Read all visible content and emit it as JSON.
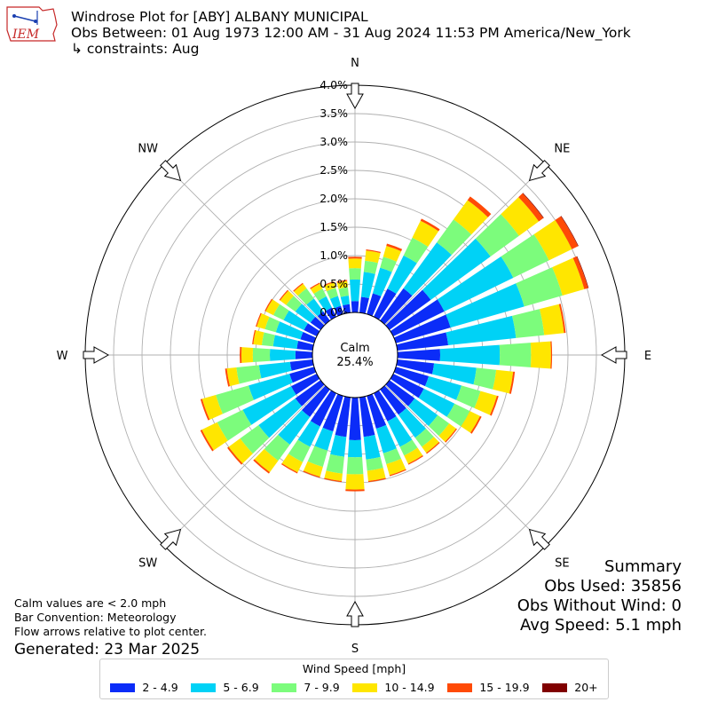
{
  "logo": {
    "text": "IEM"
  },
  "title": {
    "line1": "Windrose Plot for [ABY] ALBANY MUNICIPAL",
    "line2": "Obs Between: 01 Aug 1973 12:00 AM - 31 Aug 2024 11:53 PM America/New_York",
    "line3": "↳ constraints: Aug"
  },
  "footer": {
    "calm_note": "Calm values are < 2.0 mph",
    "bar_convention": "Bar Convention: Meteorology",
    "flow_note": "Flow arrows relative to plot center.",
    "generated": "Generated: 23 Mar 2025"
  },
  "summary": {
    "heading": "Summary",
    "obs_used": "Obs Used: 35856",
    "obs_without_wind": "Obs Without Wind: 0",
    "avg_speed": "Avg Speed: 5.1 mph"
  },
  "legend": {
    "title": "Wind Speed [mph]"
  },
  "colors": {
    "bins": [
      "#0b2cf8",
      "#00d2f6",
      "#7cfc7c",
      "#ffe600",
      "#ff4a06",
      "#800000"
    ],
    "grid": "#b0b0b0"
  },
  "chart_data": {
    "type": "windrose",
    "calm_label": "Calm",
    "calm_value": "25.4%",
    "radial_max": 4.0,
    "radial_ticks": [
      0.0,
      0.5,
      1.0,
      1.5,
      2.0,
      2.5,
      3.0,
      3.5,
      4.0
    ],
    "radial_tick_labels": [
      "0.0%",
      "0.5%",
      "1.0%",
      "1.5%",
      "2.0%",
      "2.5%",
      "3.0%",
      "3.5%",
      "4.0%"
    ],
    "direction_labels": [
      "N",
      "NE",
      "E",
      "SE",
      "S",
      "SW",
      "W",
      "NW"
    ],
    "bins": [
      "2 - 4.9",
      "5 - 6.9",
      "7 - 9.9",
      "10 - 14.9",
      "15 - 19.9",
      "20+"
    ],
    "directions_deg": [
      0,
      10,
      20,
      30,
      40,
      50,
      60,
      70,
      80,
      90,
      100,
      110,
      120,
      130,
      140,
      150,
      160,
      170,
      180,
      190,
      200,
      210,
      220,
      230,
      240,
      250,
      260,
      270,
      280,
      290,
      300,
      310,
      320,
      330,
      340,
      350
    ],
    "cumulative": [
      [
        0.2,
        0.58,
        0.78,
        0.95,
        0.98,
        0.98
      ],
      [
        0.28,
        0.72,
        0.92,
        1.1,
        1.12,
        1.12
      ],
      [
        0.38,
        0.85,
        1.05,
        1.25,
        1.29,
        1.29
      ],
      [
        0.55,
        1.2,
        1.55,
        1.88,
        1.92,
        1.92
      ],
      [
        0.7,
        1.7,
        2.2,
        2.62,
        2.7,
        2.7
      ],
      [
        0.9,
        2.2,
        2.82,
        3.25,
        3.35,
        3.36
      ],
      [
        1.0,
        2.35,
        3.05,
        3.5,
        3.62,
        3.63
      ],
      [
        1.0,
        2.35,
        3.05,
        3.45,
        3.52,
        3.53
      ],
      [
        0.9,
        2.1,
        2.6,
        2.95,
        2.98,
        2.98
      ],
      [
        0.75,
        1.8,
        2.35,
        2.7,
        2.72,
        2.72
      ],
      [
        0.65,
        1.4,
        1.75,
        2.05,
        2.08,
        2.08
      ],
      [
        0.6,
        1.2,
        1.55,
        1.85,
        1.88,
        1.88
      ],
      [
        0.6,
        1.2,
        1.5,
        1.7,
        1.73,
        1.73
      ],
      [
        0.55,
        1.05,
        1.3,
        1.45,
        1.47,
        1.47
      ],
      [
        0.55,
        1.05,
        1.25,
        1.38,
        1.4,
        1.4
      ],
      [
        0.55,
        1.05,
        1.22,
        1.38,
        1.4,
        1.4
      ],
      [
        0.6,
        1.05,
        1.25,
        1.45,
        1.47,
        1.47
      ],
      [
        0.7,
        1.1,
        1.3,
        1.48,
        1.5,
        1.5
      ],
      [
        0.75,
        1.05,
        1.35,
        1.62,
        1.65,
        1.65
      ],
      [
        0.7,
        1.05,
        1.35,
        1.48,
        1.5,
        1.5
      ],
      [
        0.65,
        1.0,
        1.3,
        1.48,
        1.5,
        1.5
      ],
      [
        0.65,
        1.05,
        1.35,
        1.55,
        1.57,
        1.57
      ],
      [
        0.6,
        1.2,
        1.55,
        1.8,
        1.83,
        1.83
      ],
      [
        0.55,
        1.35,
        1.75,
        2.0,
        2.03,
        2.03
      ],
      [
        0.5,
        1.45,
        1.95,
        2.25,
        2.28,
        2.28
      ],
      [
        0.45,
        1.2,
        1.8,
        2.05,
        2.08,
        2.08
      ],
      [
        0.4,
        0.95,
        1.35,
        1.52,
        1.55,
        1.55
      ],
      [
        0.3,
        0.75,
        1.05,
        1.25,
        1.28,
        1.28
      ],
      [
        0.28,
        0.7,
        0.9,
        1.05,
        1.07,
        1.07
      ],
      [
        0.25,
        0.7,
        0.9,
        1.05,
        1.07,
        1.07
      ],
      [
        0.25,
        0.65,
        0.85,
        1.0,
        1.02,
        1.02
      ],
      [
        0.22,
        0.55,
        0.75,
        0.88,
        0.9,
        0.9
      ],
      [
        0.2,
        0.48,
        0.7,
        0.8,
        0.82,
        0.82
      ],
      [
        0.18,
        0.4,
        0.55,
        0.65,
        0.67,
        0.67
      ],
      [
        0.15,
        0.33,
        0.48,
        0.58,
        0.6,
        0.6
      ],
      [
        0.15,
        0.3,
        0.45,
        0.56,
        0.58,
        0.58
      ]
    ]
  }
}
